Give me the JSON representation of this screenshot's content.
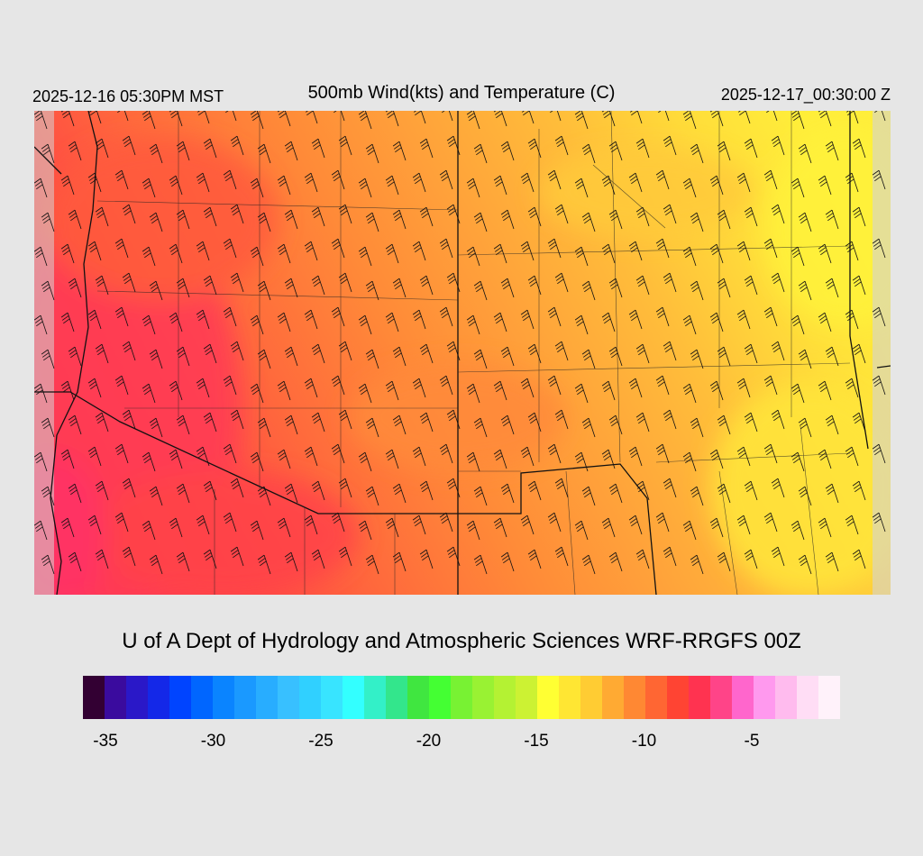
{
  "header": {
    "valid_local": "2025-12-16 05:30PM MST",
    "title": "500mb Wind(kts) and Temperature (C)",
    "valid_utc": "2025-12-17_00:30:00 Z"
  },
  "credit": "U of A Dept of Hydrology and Atmospheric Sciences WRF-RRGFS 00Z",
  "colorbar": {
    "colors": [
      "#330033",
      "#3a0b9e",
      "#2a18c8",
      "#1428e8",
      "#0044ff",
      "#0066ff",
      "#0a84ff",
      "#1a99ff",
      "#28adff",
      "#38c0ff",
      "#30d0ff",
      "#38e4ff",
      "#33ffff",
      "#33f0c8",
      "#33e68c",
      "#40e640",
      "#44ff33",
      "#78f233",
      "#99f233",
      "#b4f233",
      "#ccf233",
      "#ffff33",
      "#ffe633",
      "#ffcc33",
      "#ffaa33",
      "#ff8833",
      "#ff6633",
      "#ff4433",
      "#ff3350",
      "#ff4488",
      "#ff66cc",
      "#ff99ee",
      "#ffbbee",
      "#ffddf5",
      "#fff2fa"
    ],
    "tick_labels": [
      "-35",
      "-30",
      "-25",
      "-20",
      "-15",
      "-10",
      "-5"
    ],
    "tick_values": [
      -35,
      -30,
      -25,
      -20,
      -15,
      -10,
      -5
    ],
    "min": -35.5,
    "step": 0.5
  },
  "map": {
    "field": "500mb temperature (C) with wind barbs (kts)",
    "region": "US Desert Southwest (Arizona, New Mexico and surroundings)",
    "temperature_range": [
      -13,
      -4
    ],
    "wind_direction": "northwest"
  }
}
